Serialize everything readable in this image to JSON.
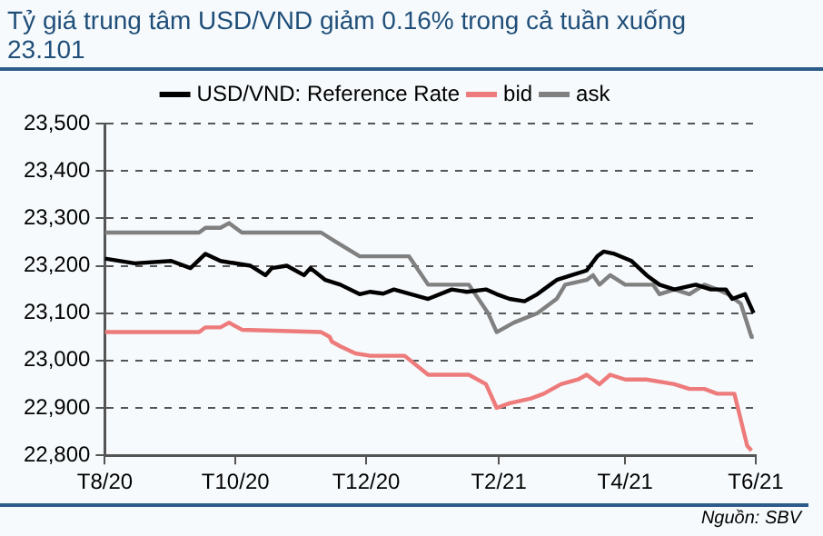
{
  "chart_data": {
    "type": "line",
    "title": "Tỷ giá trung tâm USD/VND giảm 0.16% trong cả tuần xuống 23.101",
    "annotations": [
      "Nguồn: SBV"
    ],
    "xlim": [
      "2020-08-01",
      "2021-06-01"
    ],
    "xticks": [
      {
        "value": "2020-08-01",
        "label": "T8/20"
      },
      {
        "value": "2020-10-01",
        "label": "T10/20"
      },
      {
        "value": "2020-12-01",
        "label": "T12/20"
      },
      {
        "value": "2021-02-01",
        "label": "T2/21"
      },
      {
        "value": "2021-04-01",
        "label": "T4/21"
      },
      {
        "value": "2021-06-01",
        "label": "T6/21"
      }
    ],
    "ylim": [
      22800,
      23500
    ],
    "yticks": [
      {
        "value": 22800,
        "label": "22,800"
      },
      {
        "value": 22900,
        "label": "22,900"
      },
      {
        "value": 23000,
        "label": "23,000"
      },
      {
        "value": 23100,
        "label": "23,100"
      },
      {
        "value": 23200,
        "label": "23,200"
      },
      {
        "value": 23300,
        "label": "23,300"
      },
      {
        "value": 23400,
        "label": "23,400"
      },
      {
        "value": 23500,
        "label": "23,500"
      }
    ],
    "grid": "y",
    "legend": "top",
    "marker": "none",
    "line_style": "solid",
    "series": [
      {
        "name": "USD/VND: Reference Rate",
        "color": "#000000",
        "x": [
          "2020-08-01",
          "2020-08-15",
          "2020-09-01",
          "2020-09-10",
          "2020-09-17",
          "2020-09-24",
          "2020-10-08",
          "2020-10-15",
          "2020-10-18",
          "2020-10-25",
          "2020-11-02",
          "2020-11-05",
          "2020-11-12",
          "2020-11-19",
          "2020-11-28",
          "2020-12-03",
          "2020-12-09",
          "2020-12-14",
          "2020-12-30",
          "2021-01-10",
          "2021-01-17",
          "2021-01-26",
          "2021-01-31",
          "2021-02-06",
          "2021-02-13",
          "2021-02-19",
          "2021-02-25",
          "2021-02-28",
          "2021-03-07",
          "2021-03-14",
          "2021-03-19",
          "2021-03-22",
          "2021-03-27",
          "2021-04-04",
          "2021-04-11",
          "2021-04-17",
          "2021-04-24",
          "2021-05-04",
          "2021-05-11",
          "2021-05-18",
          "2021-05-21",
          "2021-05-27",
          "2021-05-30",
          "2021-05-31"
        ],
        "values": [
          23215,
          23205,
          23210,
          23195,
          23225,
          23210,
          23200,
          23180,
          23195,
          23200,
          23180,
          23195,
          23170,
          23160,
          23140,
          23145,
          23141,
          23150,
          23130,
          23150,
          23145,
          23150,
          23140,
          23130,
          23125,
          23140,
          23160,
          23170,
          23180,
          23190,
          23220,
          23230,
          23225,
          23210,
          23180,
          23160,
          23150,
          23160,
          23150,
          23150,
          23130,
          23140,
          23110,
          23100
        ]
      },
      {
        "name": "bid",
        "color": "#ee7b7b",
        "x": [
          "2020-08-01",
          "2020-09-14",
          "2020-09-17",
          "2020-09-24",
          "2020-09-28",
          "2020-10-04",
          "2020-11-10",
          "2020-11-14",
          "2020-11-15",
          "2020-11-19",
          "2020-11-26",
          "2020-12-03",
          "2020-12-19",
          "2020-12-30",
          "2021-01-18",
          "2021-01-26",
          "2021-01-31",
          "2021-02-06",
          "2021-02-16",
          "2021-02-22",
          "2021-03-02",
          "2021-03-10",
          "2021-03-14",
          "2021-03-20",
          "2021-03-25",
          "2021-04-01",
          "2021-04-11",
          "2021-04-24",
          "2021-05-01",
          "2021-05-08",
          "2021-05-14",
          "2021-05-22",
          "2021-05-28",
          "2021-05-30"
        ],
        "values": [
          23060,
          23060,
          23070,
          23070,
          23080,
          23065,
          23060,
          23050,
          23040,
          23030,
          23015,
          23010,
          23010,
          22970,
          22970,
          22950,
          22900,
          22910,
          22920,
          22930,
          22950,
          22960,
          22970,
          22950,
          22970,
          22960,
          22960,
          22950,
          22940,
          22940,
          22930,
          22930,
          22820,
          22810
        ]
      },
      {
        "name": "ask",
        "color": "#808080",
        "x": [
          "2020-08-01",
          "2020-09-14",
          "2020-09-17",
          "2020-09-24",
          "2020-09-28",
          "2020-10-04",
          "2020-11-10",
          "2020-11-17",
          "2020-11-28",
          "2020-12-21",
          "2020-12-30",
          "2021-01-18",
          "2021-01-27",
          "2021-01-31",
          "2021-02-08",
          "2021-02-19",
          "2021-02-28",
          "2021-03-04",
          "2021-03-14",
          "2021-03-17",
          "2021-03-20",
          "2021-03-25",
          "2021-04-01",
          "2021-04-14",
          "2021-04-17",
          "2021-04-24",
          "2021-05-01",
          "2021-05-08",
          "2021-05-14",
          "2021-05-19",
          "2021-05-25",
          "2021-05-30",
          "2021-05-31"
        ],
        "values": [
          23270,
          23270,
          23280,
          23280,
          23290,
          23270,
          23270,
          23250,
          23220,
          23220,
          23160,
          23160,
          23100,
          23060,
          23080,
          23100,
          23130,
          23160,
          23170,
          23180,
          23160,
          23180,
          23160,
          23160,
          23140,
          23150,
          23140,
          23160,
          23150,
          23140,
          23120,
          23050,
          23050
        ]
      }
    ]
  }
}
